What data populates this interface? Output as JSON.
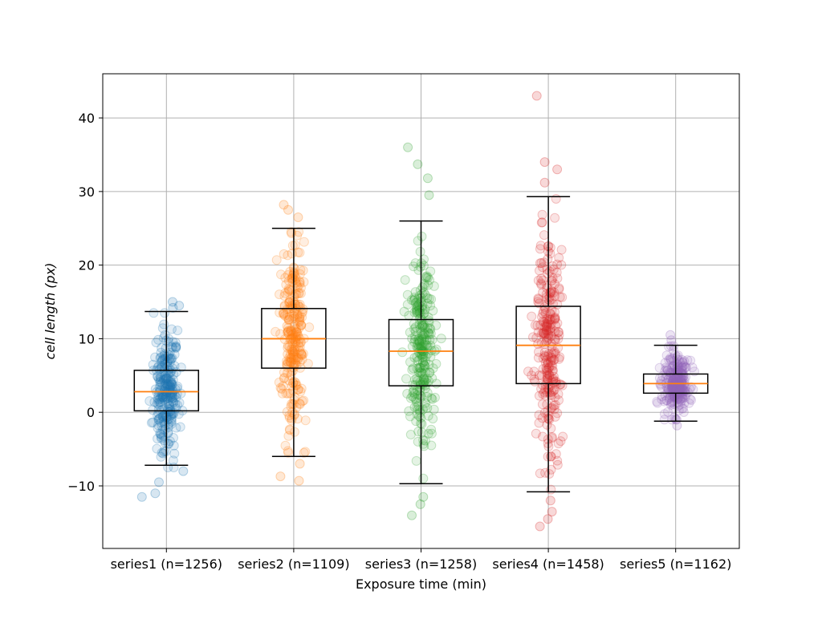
{
  "chart_data": {
    "type": "box",
    "title": "",
    "xlabel": "Exposure time (min)",
    "ylabel": "cell length (px)",
    "ylim": [
      -18.5,
      46
    ],
    "yticks": [
      -10,
      0,
      10,
      20,
      30,
      40
    ],
    "grid": true,
    "categories": [
      "series1 (n=1256)",
      "series2 (n=1109)",
      "series3 (n=1258)",
      "series4 (n=1458)",
      "series5 (n=1162)"
    ],
    "series": [
      {
        "n": 1256,
        "color": "#1f77b4",
        "whisker_low": -7.2,
        "q1": 0.2,
        "median": 2.8,
        "q3": 5.7,
        "whisker_high": 13.7,
        "outliers": [
          14.5,
          15.0,
          14.2,
          -8.0,
          -9.5,
          -11.5,
          -11.0
        ],
        "spread_low": -7.5,
        "spread_high": 13.5
      },
      {
        "n": 1109,
        "color": "#ff7f0e",
        "whisker_low": -6.0,
        "q1": 6.0,
        "median": 10.0,
        "q3": 14.1,
        "whisker_high": 25.0,
        "outliers": [
          26.5,
          27.5,
          28.2,
          -7.0,
          -8.7,
          -9.3
        ],
        "spread_low": -5.5,
        "spread_high": 24.5
      },
      {
        "n": 1258,
        "color": "#2ca02c",
        "whisker_low": -9.7,
        "q1": 3.6,
        "median": 8.3,
        "q3": 12.6,
        "whisker_high": 26.0,
        "outliers": [
          29.5,
          31.8,
          33.7,
          36.0,
          -11.5,
          -12.5,
          -14.0
        ],
        "spread_low": -9.0,
        "spread_high": 25.5
      },
      {
        "n": 1458,
        "color": "#d62728",
        "whisker_low": -10.8,
        "q1": 3.9,
        "median": 9.1,
        "q3": 14.4,
        "whisker_high": 29.3,
        "outliers": [
          31.2,
          33.0,
          34.0,
          43.0,
          -12.0,
          -13.5,
          -14.5,
          -15.5
        ],
        "spread_low": -10.5,
        "spread_high": 29.0
      },
      {
        "n": 1162,
        "color": "#9467bd",
        "whisker_low": -1.2,
        "q1": 2.6,
        "median": 3.9,
        "q3": 5.2,
        "whisker_high": 9.1,
        "outliers": [
          9.8,
          10.5,
          -1.8
        ],
        "spread_low": -1.0,
        "spread_high": 9.0
      }
    ],
    "median_color": "#ff7f0e"
  }
}
